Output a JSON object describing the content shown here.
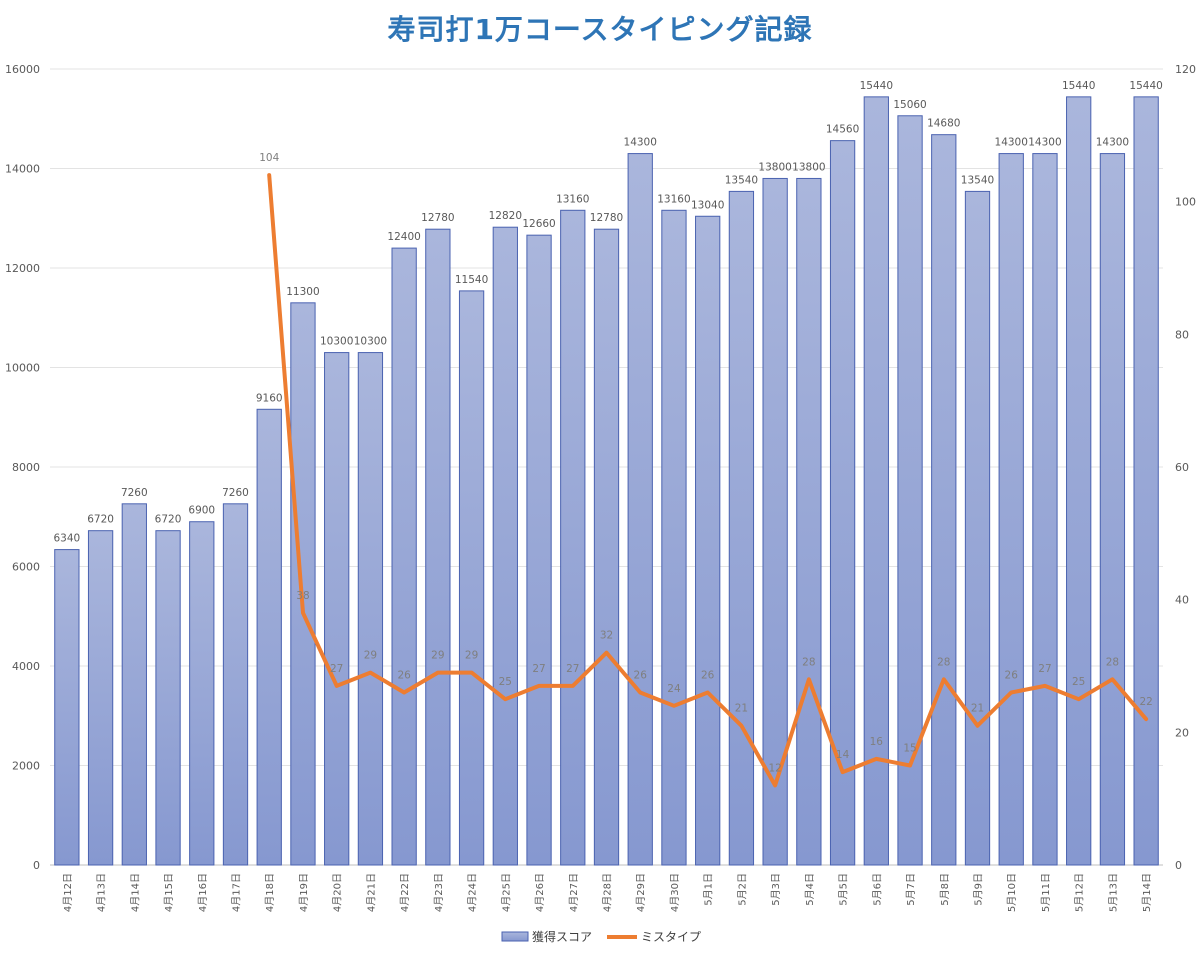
{
  "chart_data": {
    "type": "bar",
    "title": "寿司打1万コースタイピング記録",
    "categories": [
      "4月12日",
      "4月13日",
      "4月14日",
      "4月15日",
      "4月16日",
      "4月17日",
      "4月18日",
      "4月19日",
      "4月20日",
      "4月21日",
      "4月22日",
      "4月23日",
      "4月24日",
      "4月25日",
      "4月26日",
      "4月27日",
      "4月28日",
      "4月29日",
      "4月30日",
      "5月1日",
      "5月2日",
      "5月3日",
      "5月4日",
      "5月5日",
      "5月6日",
      "5月7日",
      "5月8日",
      "5月9日",
      "5月10日",
      "5月11日",
      "5月12日",
      "5月13日",
      "5月14日"
    ],
    "series": [
      {
        "name": "獲得スコア",
        "type": "bar",
        "axis": "left",
        "color": "#8fa3d6",
        "values": [
          6340,
          6720,
          7260,
          6720,
          6900,
          7260,
          9160,
          11300,
          10300,
          10300,
          12400,
          12780,
          11540,
          12820,
          12660,
          13160,
          12780,
          14300,
          13160,
          13040,
          13540,
          13800,
          13800,
          14560,
          15440,
          15060,
          14680,
          13540,
          14300,
          14300,
          15440,
          14300,
          15440
        ]
      },
      {
        "name": "ミスタイプ",
        "type": "line",
        "axis": "right",
        "color": "#ed7d31",
        "values": [
          null,
          null,
          null,
          null,
          null,
          null,
          104,
          38,
          27,
          29,
          26,
          29,
          29,
          25,
          27,
          27,
          32,
          26,
          24,
          26,
          21,
          12,
          28,
          14,
          16,
          15,
          28,
          21,
          26,
          27,
          25,
          28,
          22
        ]
      }
    ],
    "y_left": {
      "min": 0,
      "max": 16000,
      "ticks": [
        0,
        2000,
        4000,
        6000,
        8000,
        10000,
        12000,
        14000,
        16000
      ]
    },
    "y_right": {
      "min": 0,
      "max": 120,
      "ticks": [
        0,
        20,
        40,
        60,
        80,
        100,
        120
      ]
    },
    "grid": true,
    "legend": "bottom"
  }
}
